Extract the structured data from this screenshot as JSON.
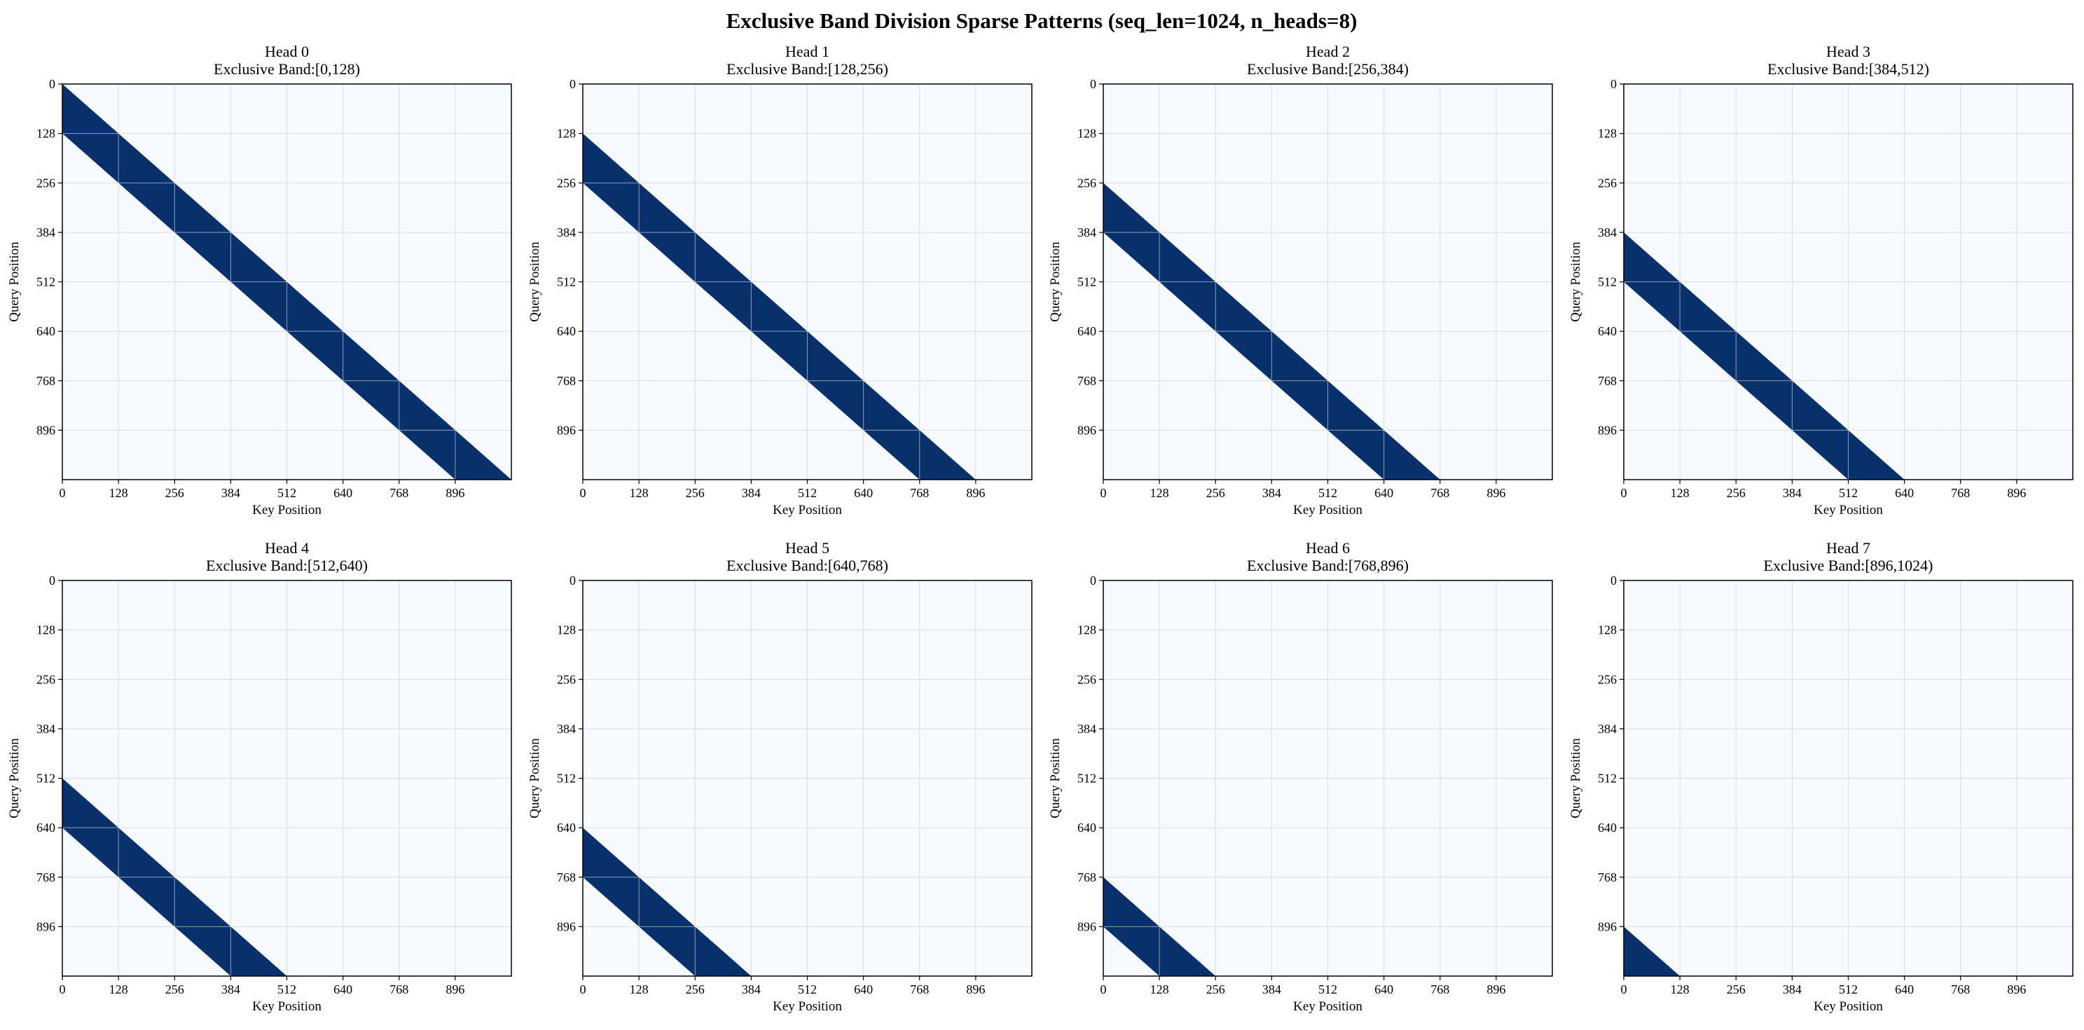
{
  "figure": {
    "suptitle": "Exclusive Band Division Sparse Patterns (seq_len=1024, n_heads=8)"
  },
  "colors": {
    "background": "#f7fbff",
    "band": "#08306b",
    "grid": "#c8d0d8",
    "axes": "#000000"
  },
  "chart_data": [
    {
      "type": "heatmap",
      "title": "Head 0",
      "subtitle": "Exclusive Band:[0,128)",
      "xlabel": "Key Position",
      "ylabel": "Query Position",
      "xlim": [
        0,
        1024
      ],
      "ylim": [
        1024,
        0
      ],
      "ticks": [
        0,
        128,
        256,
        384,
        512,
        640,
        768,
        896
      ],
      "tick_labels": [
        "0",
        "128",
        "256",
        "384",
        "512",
        "640",
        "768",
        "896"
      ],
      "grid": true,
      "band": {
        "offset_start": 0,
        "offset_end": 128
      }
    },
    {
      "type": "heatmap",
      "title": "Head 1",
      "subtitle": "Exclusive Band:[128,256)",
      "xlabel": "Key Position",
      "ylabel": "Query Position",
      "xlim": [
        0,
        1024
      ],
      "ylim": [
        1024,
        0
      ],
      "ticks": [
        0,
        128,
        256,
        384,
        512,
        640,
        768,
        896
      ],
      "tick_labels": [
        "0",
        "128",
        "256",
        "384",
        "512",
        "640",
        "768",
        "896"
      ],
      "grid": true,
      "band": {
        "offset_start": 128,
        "offset_end": 256
      }
    },
    {
      "type": "heatmap",
      "title": "Head 2",
      "subtitle": "Exclusive Band:[256,384)",
      "xlabel": "Key Position",
      "ylabel": "Query Position",
      "xlim": [
        0,
        1024
      ],
      "ylim": [
        1024,
        0
      ],
      "ticks": [
        0,
        128,
        256,
        384,
        512,
        640,
        768,
        896
      ],
      "tick_labels": [
        "0",
        "128",
        "256",
        "384",
        "512",
        "640",
        "768",
        "896"
      ],
      "grid": true,
      "band": {
        "offset_start": 256,
        "offset_end": 384
      }
    },
    {
      "type": "heatmap",
      "title": "Head 3",
      "subtitle": "Exclusive Band:[384,512)",
      "xlabel": "Key Position",
      "ylabel": "Query Position",
      "xlim": [
        0,
        1024
      ],
      "ylim": [
        1024,
        0
      ],
      "ticks": [
        0,
        128,
        256,
        384,
        512,
        640,
        768,
        896
      ],
      "tick_labels": [
        "0",
        "128",
        "256",
        "384",
        "512",
        "640",
        "768",
        "896"
      ],
      "grid": true,
      "band": {
        "offset_start": 384,
        "offset_end": 512
      }
    },
    {
      "type": "heatmap",
      "title": "Head 4",
      "subtitle": "Exclusive Band:[512,640)",
      "xlabel": "Key Position",
      "ylabel": "Query Position",
      "xlim": [
        0,
        1024
      ],
      "ylim": [
        1024,
        0
      ],
      "ticks": [
        0,
        128,
        256,
        384,
        512,
        640,
        768,
        896
      ],
      "tick_labels": [
        "0",
        "128",
        "256",
        "384",
        "512",
        "640",
        "768",
        "896"
      ],
      "grid": true,
      "band": {
        "offset_start": 512,
        "offset_end": 640
      }
    },
    {
      "type": "heatmap",
      "title": "Head 5",
      "subtitle": "Exclusive Band:[640,768)",
      "xlabel": "Key Position",
      "ylabel": "Query Position",
      "xlim": [
        0,
        1024
      ],
      "ylim": [
        1024,
        0
      ],
      "ticks": [
        0,
        128,
        256,
        384,
        512,
        640,
        768,
        896
      ],
      "tick_labels": [
        "0",
        "128",
        "256",
        "384",
        "512",
        "640",
        "768",
        "896"
      ],
      "grid": true,
      "band": {
        "offset_start": 640,
        "offset_end": 768
      }
    },
    {
      "type": "heatmap",
      "title": "Head 6",
      "subtitle": "Exclusive Band:[768,896)",
      "xlabel": "Key Position",
      "ylabel": "Query Position",
      "xlim": [
        0,
        1024
      ],
      "ylim": [
        1024,
        0
      ],
      "ticks": [
        0,
        128,
        256,
        384,
        512,
        640,
        768,
        896
      ],
      "tick_labels": [
        "0",
        "128",
        "256",
        "384",
        "512",
        "640",
        "768",
        "896"
      ],
      "grid": true,
      "band": {
        "offset_start": 768,
        "offset_end": 896
      }
    },
    {
      "type": "heatmap",
      "title": "Head 7",
      "subtitle": "Exclusive Band:[896,1024)",
      "xlabel": "Key Position",
      "ylabel": "Query Position",
      "xlim": [
        0,
        1024
      ],
      "ylim": [
        1024,
        0
      ],
      "ticks": [
        0,
        128,
        256,
        384,
        512,
        640,
        768,
        896
      ],
      "tick_labels": [
        "0",
        "128",
        "256",
        "384",
        "512",
        "640",
        "768",
        "896"
      ],
      "grid": true,
      "band": {
        "offset_start": 896,
        "offset_end": 1024
      }
    }
  ]
}
